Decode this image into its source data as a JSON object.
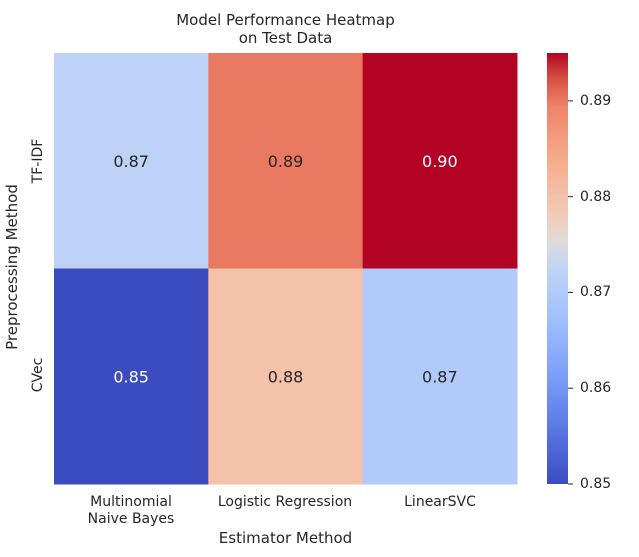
{
  "chart_data": {
    "type": "heatmap",
    "title": "Model Performance Heatmap\non Test Data",
    "title_lines": [
      "Model Performance Heatmap",
      "on Test Data"
    ],
    "xlabel": "Estimator Method",
    "ylabel": "Preprocessing Method",
    "x_categories": [
      [
        "Multinomial",
        "Naive Bayes"
      ],
      [
        "Logistic Regression"
      ],
      [
        "LinearSVC"
      ]
    ],
    "y_categories": [
      "TF-IDF",
      "CVec"
    ],
    "values": [
      [
        0.872,
        0.89,
        0.895
      ],
      [
        0.85,
        0.88,
        0.87
      ]
    ],
    "annotations": [
      [
        "0.87",
        "0.89",
        "0.90"
      ],
      [
        "0.85",
        "0.88",
        "0.87"
      ]
    ],
    "colormap": "coolwarm",
    "vmin": 0.85,
    "vmax": 0.895,
    "colorbar_ticks": [
      0.85,
      0.86,
      0.87,
      0.88,
      0.89
    ],
    "colorbar_tick_labels": [
      "0.85",
      "0.86",
      "0.87",
      "0.88",
      "0.89"
    ]
  }
}
